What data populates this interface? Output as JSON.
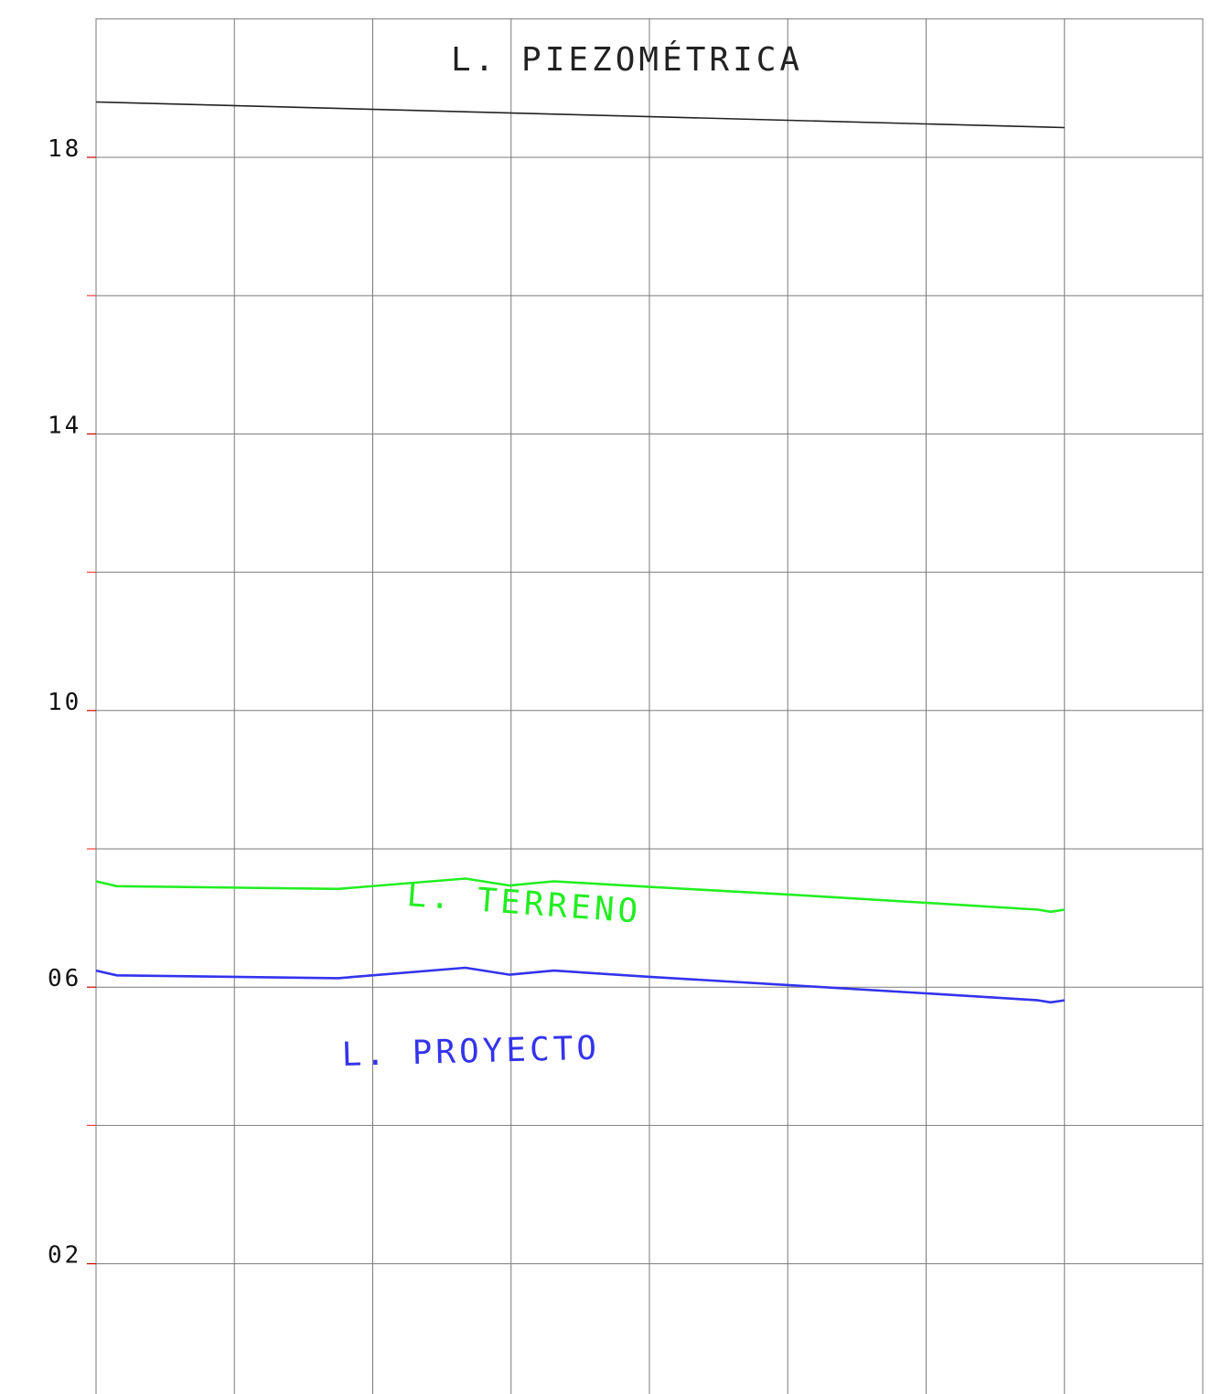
{
  "chart_data": {
    "type": "line",
    "title": "",
    "xlabel": "",
    "ylabel": "",
    "xlim": [
      0,
      8
    ],
    "ylim": [
      -1.9,
      20
    ],
    "grid": true,
    "x_gridlines": [
      0,
      1,
      2,
      3,
      4,
      5,
      6,
      7,
      8
    ],
    "y_gridlines": [
      0,
      2,
      4,
      6,
      8,
      10,
      12,
      14,
      16,
      18,
      20
    ],
    "y_ticks": [
      {
        "value": 18,
        "label": "18",
        "color": "#cc0000"
      },
      {
        "value": 16,
        "label": "",
        "color": "#ff3b3b"
      },
      {
        "value": 14,
        "label": "14",
        "color": "#cc0000"
      },
      {
        "value": 12,
        "label": "",
        "color": "#ff3b3b"
      },
      {
        "value": 10,
        "label": "10",
        "color": "#cc0000"
      },
      {
        "value": 8,
        "label": "",
        "color": "#ff3b3b"
      },
      {
        "value": 6,
        "label": "06",
        "color": "#cc0000"
      },
      {
        "value": 4,
        "label": "",
        "color": "#ff3b3b"
      },
      {
        "value": 2,
        "label": "02",
        "color": "#cc0000"
      }
    ],
    "series": [
      {
        "name": "L. PIEZOMÉTRICA",
        "color": "#222222",
        "x": [
          0,
          7.0
        ],
        "y": [
          18.8,
          18.43
        ]
      },
      {
        "name": "L. TERRENO",
        "color": "#22ee22",
        "x": [
          0,
          0.15,
          1.75,
          2.67,
          2.99,
          3.31,
          4.0,
          5.0,
          6.0,
          6.81,
          6.9,
          7.0
        ],
        "y": [
          7.53,
          7.46,
          7.42,
          7.57,
          7.47,
          7.53,
          7.45,
          7.34,
          7.22,
          7.12,
          7.09,
          7.12
        ]
      },
      {
        "name": "L. PROYECTO",
        "color": "#3333ee",
        "x": [
          0,
          0.15,
          1.75,
          2.67,
          2.99,
          3.31,
          4.0,
          5.0,
          6.0,
          6.81,
          6.9,
          7.0
        ],
        "y": [
          6.24,
          6.17,
          6.13,
          6.28,
          6.18,
          6.24,
          6.15,
          6.03,
          5.91,
          5.81,
          5.78,
          5.81
        ]
      }
    ]
  }
}
